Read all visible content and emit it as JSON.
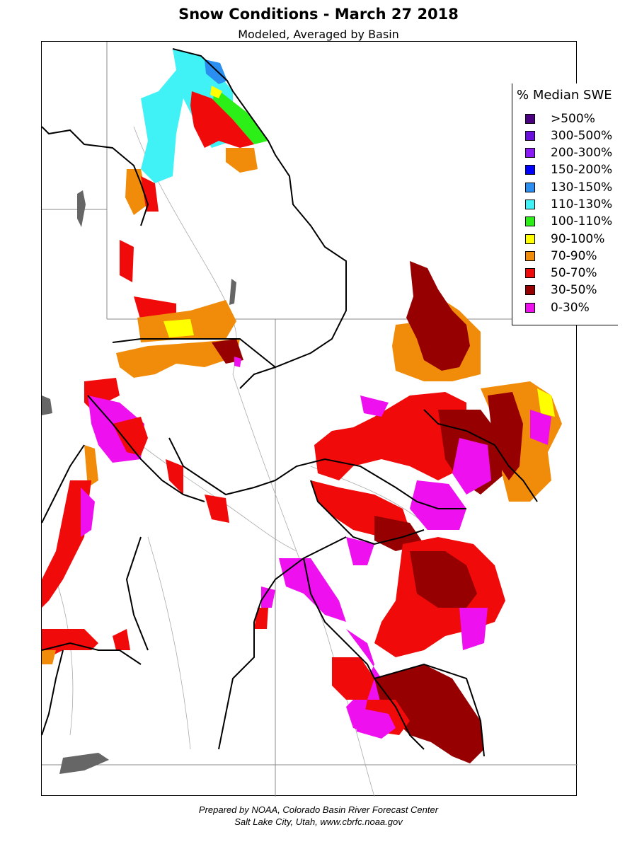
{
  "title": "Snow Conditions - March 27 2018",
  "subtitle": "Modeled, Averaged by Basin",
  "legend": {
    "title": "% Median SWE",
    "items": [
      {
        "label": ">500%",
        "color": "#4b0082"
      },
      {
        "label": "300-500%",
        "color": "#6a0fdc"
      },
      {
        "label": "200-300%",
        "color": "#8a1af5"
      },
      {
        "label": "150-200%",
        "color": "#0000ff"
      },
      {
        "label": "130-150%",
        "color": "#2a8ff0"
      },
      {
        "label": "110-130%",
        "color": "#40f2f5"
      },
      {
        "label": "100-110%",
        "color": "#2bef16"
      },
      {
        "label": "90-100%",
        "color": "#ffff00"
      },
      {
        "label": "70-90%",
        "color": "#f08c0a"
      },
      {
        "label": "50-70%",
        "color": "#f00a0a"
      },
      {
        "label": "30-50%",
        "color": "#960000"
      },
      {
        "label": "0-30%",
        "color": "#ee10ee"
      }
    ]
  },
  "credit": {
    "line1": "Prepared by NOAA, Colorado Basin River Forecast Center",
    "line2": "Salt Lake City, Utah, www.cbrfc.noaa.gov"
  }
}
